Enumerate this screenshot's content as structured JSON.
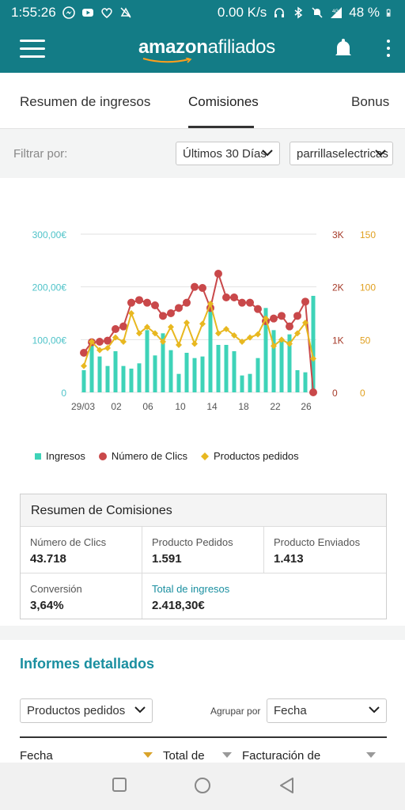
{
  "status_bar": {
    "time": "1:55:26",
    "speed": "0.00 K/s",
    "signal": "4G",
    "battery": "48 %"
  },
  "app_bar": {
    "brand_bold": "amazon",
    "brand_light": "afiliados"
  },
  "tabs": [
    {
      "label": "Resumen de ingresos",
      "active": false
    },
    {
      "label": "Comisiones",
      "active": true
    },
    {
      "label": "Bonus",
      "active": false
    }
  ],
  "filter": {
    "label": "Filtrar por:",
    "period_value": "Últimos 30 Días",
    "tracking_value": "parrillaselectricas"
  },
  "chart_data": {
    "type": "bar+line",
    "x_ticks": [
      "29/03",
      "02",
      "06",
      "10",
      "14",
      "18",
      "22",
      "26"
    ],
    "left_axis": {
      "ticks": [
        "300,00€",
        "200,00€",
        "100,00€",
        "0"
      ],
      "range": [
        0,
        300
      ],
      "color": "#4fc3c9"
    },
    "right_axis_1": {
      "ticks": [
        "3K",
        "2K",
        "1K",
        "0"
      ],
      "range": [
        0,
        3000
      ],
      "color": "#a63b2a"
    },
    "right_axis_2": {
      "ticks": [
        "150",
        "100",
        "50",
        "0"
      ],
      "range": [
        0,
        150
      ],
      "color": "#e0a020"
    },
    "grid": true,
    "legend_position": "bottom",
    "series": [
      {
        "name": "Ingresos",
        "type": "bar",
        "axis": "left",
        "color": "#3ed3b8",
        "values": [
          42,
          92,
          68,
          50,
          78,
          50,
          45,
          55,
          118,
          70,
          112,
          80,
          35,
          75,
          65,
          68,
          165,
          90,
          90,
          78,
          32,
          35,
          65,
          160,
          118,
          100,
          110,
          42,
          38,
          183
        ]
      },
      {
        "name": "Número de Clics",
        "type": "line",
        "axis": "right_1",
        "color": "#c9484a",
        "values": [
          750,
          950,
          960,
          980,
          1200,
          1250,
          1700,
          1750,
          1700,
          1650,
          1450,
          1500,
          1600,
          1700,
          2000,
          1980,
          1600,
          2250,
          1800,
          1800,
          1700,
          1700,
          1580,
          1350,
          1400,
          1450,
          1250,
          1450,
          1720,
          0
        ]
      },
      {
        "name": "Productos pedidos",
        "type": "line",
        "axis": "right_2",
        "color": "#e8b820",
        "values": [
          25,
          48,
          40,
          42,
          52,
          48,
          75,
          56,
          62,
          56,
          48,
          62,
          45,
          66,
          46,
          65,
          84,
          56,
          60,
          54,
          48,
          52,
          55,
          70,
          44,
          50,
          46,
          56,
          66,
          32
        ]
      }
    ]
  },
  "summary": {
    "title": "Resumen de Comisiones",
    "clicks_label": "Número de Clics",
    "clicks_value": "43.718",
    "ordered_label": "Producto Pedidos",
    "ordered_value": "1.591",
    "shipped_label": "Producto Enviados",
    "shipped_value": "1.413",
    "conversion_label": "Conversión",
    "conversion_value": "3,64%",
    "income_label": "Total de ingresos",
    "income_value": "2.418,30€"
  },
  "detailed": {
    "title": "Informes detallados",
    "report_select": "Productos pedidos",
    "group_label": "Agrupar por",
    "group_select": "Fecha",
    "columns": [
      "Fecha",
      "Total de",
      "Facturación de"
    ]
  }
}
